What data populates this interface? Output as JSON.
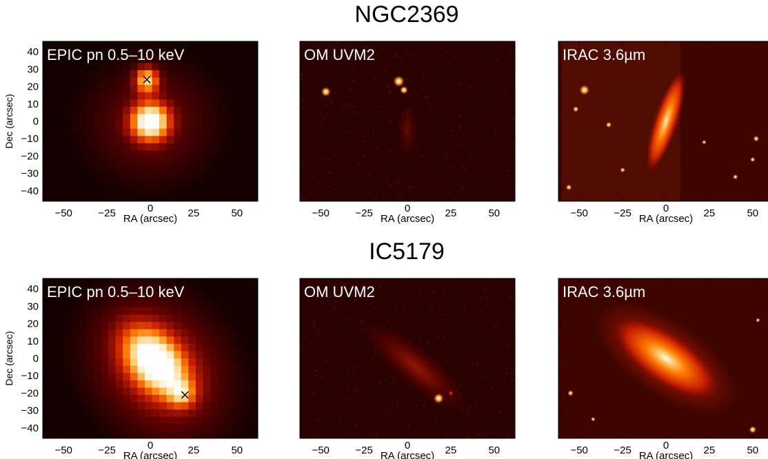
{
  "figure": {
    "rows": [
      {
        "object": "NGC2369",
        "panels": [
          {
            "label": "EPIC pn 0.5–10 keV",
            "xlabel": "RA (arcsec)",
            "ylabel": "Dec (arcsec)",
            "marker": [
              -2,
              24
            ]
          },
          {
            "label": "OM UVM2",
            "xlabel": "RA (arcsec)",
            "ylabel": ""
          },
          {
            "label": "IRAC 3.6µm",
            "xlabel": "RA (arcsec)",
            "ylabel": ""
          }
        ]
      },
      {
        "object": "IC5179",
        "panels": [
          {
            "label": "EPIC pn 0.5–10 keV",
            "xlabel": "RA (arcsec)",
            "ylabel": "Dec (arcsec)",
            "marker": [
              20,
              -21
            ]
          },
          {
            "label": "OM UVM2",
            "xlabel": "RA (arcsec)",
            "ylabel": ""
          },
          {
            "label": "IRAC 3.6µm",
            "xlabel": "RA (arcsec)",
            "ylabel": ""
          }
        ]
      }
    ],
    "x_ticks": [
      -50,
      -25,
      0,
      25,
      50
    ],
    "y_ticks": [
      40,
      30,
      20,
      10,
      0,
      -10,
      -20,
      -30,
      -40
    ],
    "x_range": [
      -62,
      62
    ],
    "y_range": [
      -46,
      46
    ],
    "colormap": [
      "#000000",
      "#5a0000",
      "#c81e00",
      "#ff7a00",
      "#ffd27a",
      "#ffffff"
    ]
  }
}
